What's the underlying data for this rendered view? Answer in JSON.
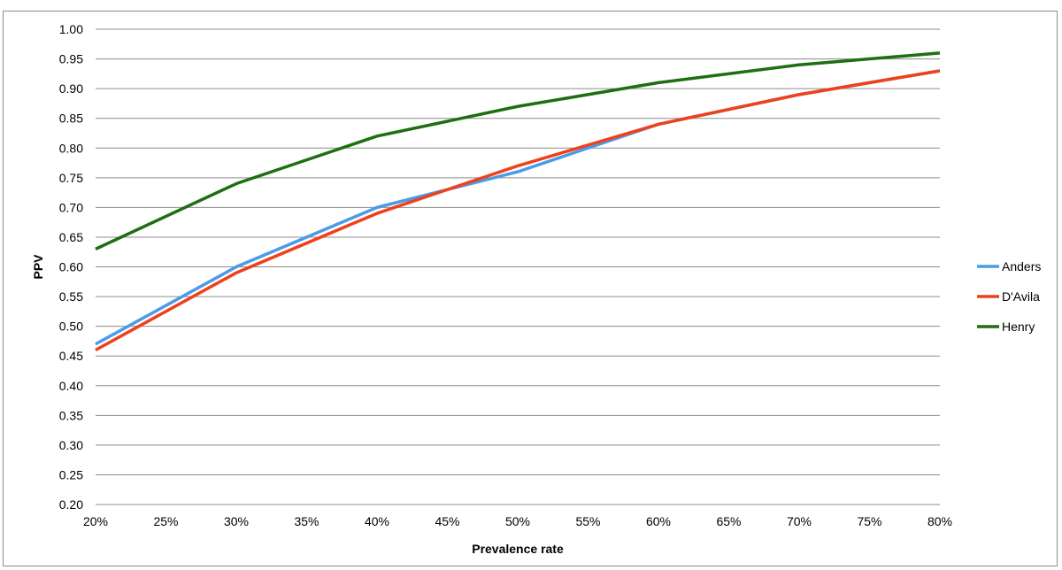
{
  "chart_data": {
    "type": "line",
    "title": "",
    "xlabel": "Prevalence rate",
    "ylabel": "PPV",
    "x": [
      0.2,
      0.3,
      0.4,
      0.5,
      0.6,
      0.7,
      0.8
    ],
    "xlim": [
      0.2,
      0.8
    ],
    "xticks": [
      "20%",
      "25%",
      "30%",
      "35%",
      "40%",
      "45%",
      "50%",
      "55%",
      "60%",
      "65%",
      "70%",
      "75%",
      "80%"
    ],
    "ylim": [
      0.2,
      1.0
    ],
    "yticks": [
      "0.20",
      "0.25",
      "0.30",
      "0.35",
      "0.40",
      "0.45",
      "0.50",
      "0.55",
      "0.60",
      "0.65",
      "0.70",
      "0.75",
      "0.80",
      "0.85",
      "0.90",
      "0.95",
      "1.00"
    ],
    "grid": "horizontal",
    "legend_position": "right",
    "series": [
      {
        "name": "Anders",
        "color": "#4a9be8",
        "values": [
          0.47,
          0.6,
          0.7,
          0.76,
          0.84,
          0.89,
          0.93
        ]
      },
      {
        "name": "D'Avila",
        "color": "#f0401a",
        "values": [
          0.46,
          0.59,
          0.69,
          0.77,
          0.84,
          0.89,
          0.93
        ]
      },
      {
        "name": "Henry",
        "color": "#1e6e12",
        "values": [
          0.63,
          0.74,
          0.82,
          0.87,
          0.91,
          0.94,
          0.96
        ]
      }
    ]
  }
}
